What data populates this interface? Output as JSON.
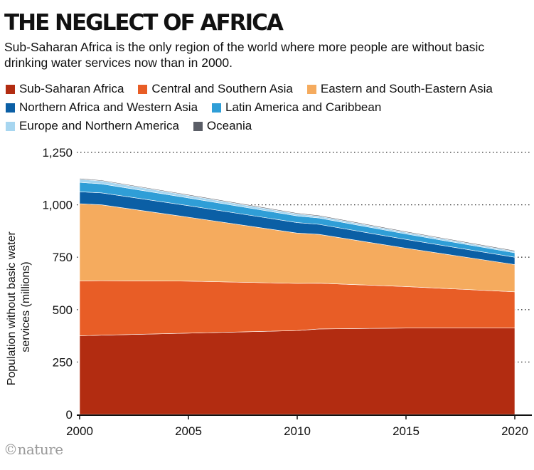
{
  "chart_data": {
    "type": "area",
    "stacked": true,
    "title": "THE NEGLECT OF AFRICA",
    "subtitle": "Sub-Saharan Africa is the only region of the world where more people are without basic drinking water services now than in 2000.",
    "ylabel_lines": [
      "Population without basic water",
      "services (millions)"
    ],
    "xlabel": "",
    "xlim": [
      2000,
      2020
    ],
    "ylim": [
      0,
      1250
    ],
    "x_ticks": [
      2000,
      2005,
      2010,
      2015,
      2020
    ],
    "y_ticks": [
      0,
      250,
      500,
      750,
      1000,
      1250
    ],
    "y_tick_labels": [
      "0",
      "250",
      "500",
      "750",
      "1,000",
      "1,250"
    ],
    "grid": "dotted horizontal",
    "legend_position": "top",
    "x": [
      2000,
      2001,
      2005,
      2010,
      2011,
      2015,
      2020
    ],
    "series": [
      {
        "name": "Sub-Saharan Africa",
        "color": "#b22c11",
        "values": [
          375,
          378,
          388,
          400,
          408,
          412,
          412
        ]
      },
      {
        "name": "Central and Southern Asia",
        "color": "#e85d26",
        "values": [
          262,
          260,
          248,
          225,
          218,
          198,
          173
        ]
      },
      {
        "name": "Eastern and South-Eastern Asia",
        "color": "#f5ab5e",
        "values": [
          368,
          362,
          305,
          240,
          233,
          183,
          130
        ]
      },
      {
        "name": "Northern Africa and Western Asia",
        "color": "#0b5fa5",
        "values": [
          57,
          57,
          55,
          50,
          48,
          42,
          35
        ]
      },
      {
        "name": "Latin America and Caribbean",
        "color": "#2f9ed7",
        "values": [
          45,
          43,
          37,
          32,
          30,
          26,
          21
        ]
      },
      {
        "name": "Europe and Northern America",
        "color": "#a7d6f0",
        "values": [
          15,
          14,
          12,
          10,
          9,
          8,
          7
        ]
      },
      {
        "name": "Oceania",
        "color": "#5a5d66",
        "values": [
          4,
          4,
          4,
          4,
          4,
          4,
          4
        ]
      }
    ]
  },
  "credit": "©nature"
}
